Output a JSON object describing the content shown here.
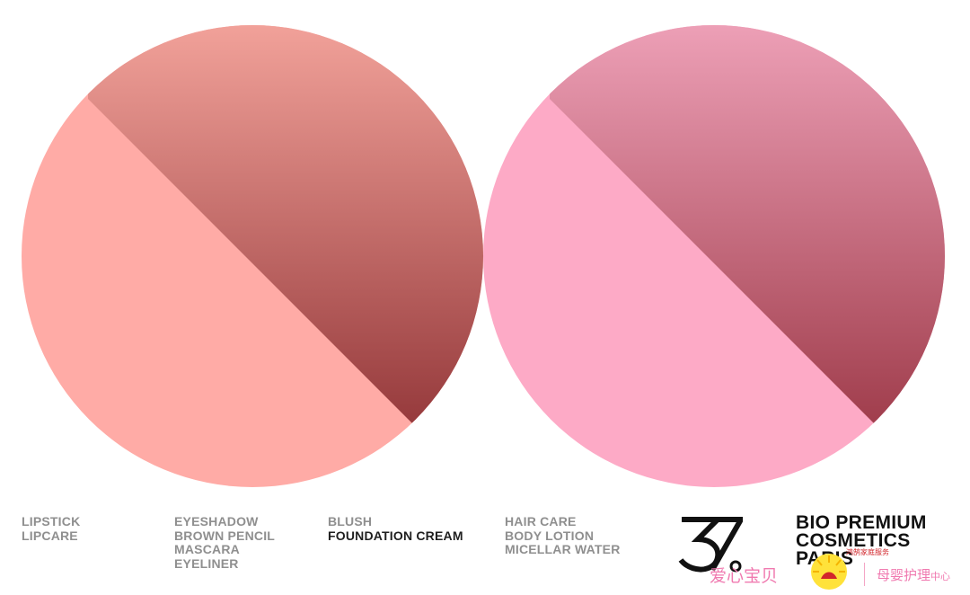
{
  "colors": {
    "left_light": "#ffaba6",
    "left_top": "#f3a39b",
    "left_bottom": "#963a3c",
    "right_light": "#fdaac6",
    "right_top": "#eea1b8",
    "right_bottom": "#a03d4c"
  },
  "categories": {
    "lips": [
      "LIPSTICK",
      "LIPCARE"
    ],
    "eyes": [
      "EYESHADOW",
      "BROWN PENCIL",
      "MASCARA",
      "EYELINER"
    ],
    "face": [
      "BLUSH",
      "FOUNDATION CREAM"
    ],
    "body": [
      "HAIR CARE",
      "BODY LOTION",
      "MICELLAR WATER"
    ]
  },
  "brand": {
    "logo_icon": "37-degree-logo-icon",
    "lines": [
      "BIO PREMIUM",
      "COSMETICS",
      "PARIS"
    ]
  },
  "watermark": {
    "left_text": "爱心宝贝",
    "small_text": "鸿鹄家庭服务",
    "right_text_main": "母婴护理",
    "right_text_small": "中心",
    "badge_icon": "sunburst-badge-icon"
  }
}
